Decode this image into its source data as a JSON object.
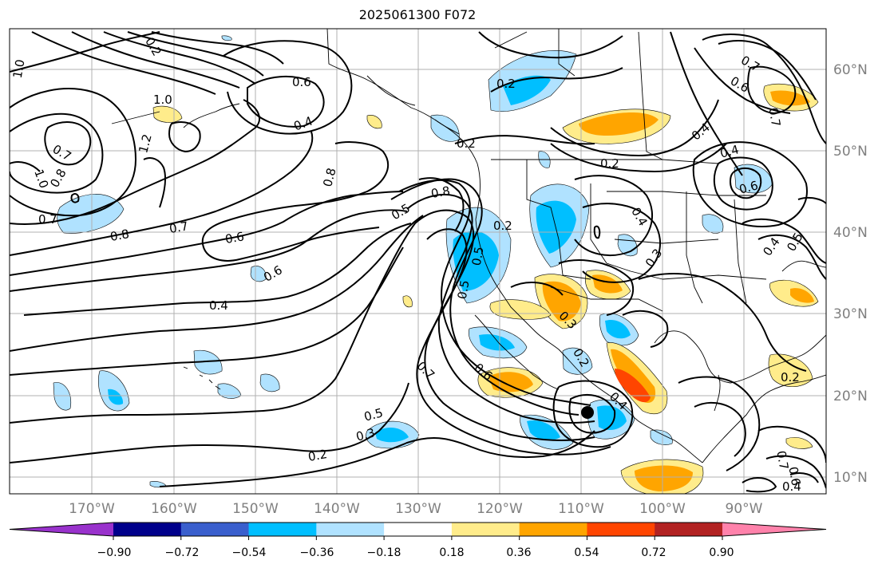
{
  "title": "2025061300 F072",
  "lat_labels": [
    "60°N",
    "50°N",
    "40°N",
    "30°N",
    "20°N",
    "10°N"
  ],
  "lon_labels": [
    "170°W",
    "160°W",
    "150°W",
    "140°W",
    "130°W",
    "120°W",
    "110°W",
    "100°W",
    "90°W"
  ],
  "colorbar": {
    "ticks": [
      "−0.90",
      "−0.72",
      "−0.54",
      "−0.36",
      "−0.18",
      "0.18",
      "0.36",
      "0.54",
      "0.72",
      "0.90"
    ],
    "colors": [
      "#9932cc",
      "#00008b",
      "#3a5fcd",
      "#00bfff",
      "#b0e2ff",
      "#ffffff",
      "#ffec8b",
      "#ffa500",
      "#ff4500",
      "#b22222",
      "#ff82ab"
    ]
  },
  "contour_labels": [
    "1.0",
    "0.2",
    "0.6",
    "0.4",
    "0.2",
    "0.7",
    "1.0",
    "1.2",
    "0.7",
    "0.8",
    "1.0",
    "0.7",
    "0.8",
    "0.7",
    "0.6",
    "0.8",
    "0.6",
    "0.4",
    "0.5",
    "0.8",
    "0.2",
    "0.2",
    "0.2",
    "0.4",
    "0.4",
    "0.6",
    "0.7",
    "0.4",
    "0.4",
    "0.5",
    "0.3",
    "0.5",
    "0.5",
    "0.3",
    "0.2",
    "0.7",
    "0.6",
    "0.3",
    "0.5",
    "0.2",
    "0.2",
    "0.4",
    "0.7",
    "0.6",
    "0.6",
    "0.4"
  ]
}
